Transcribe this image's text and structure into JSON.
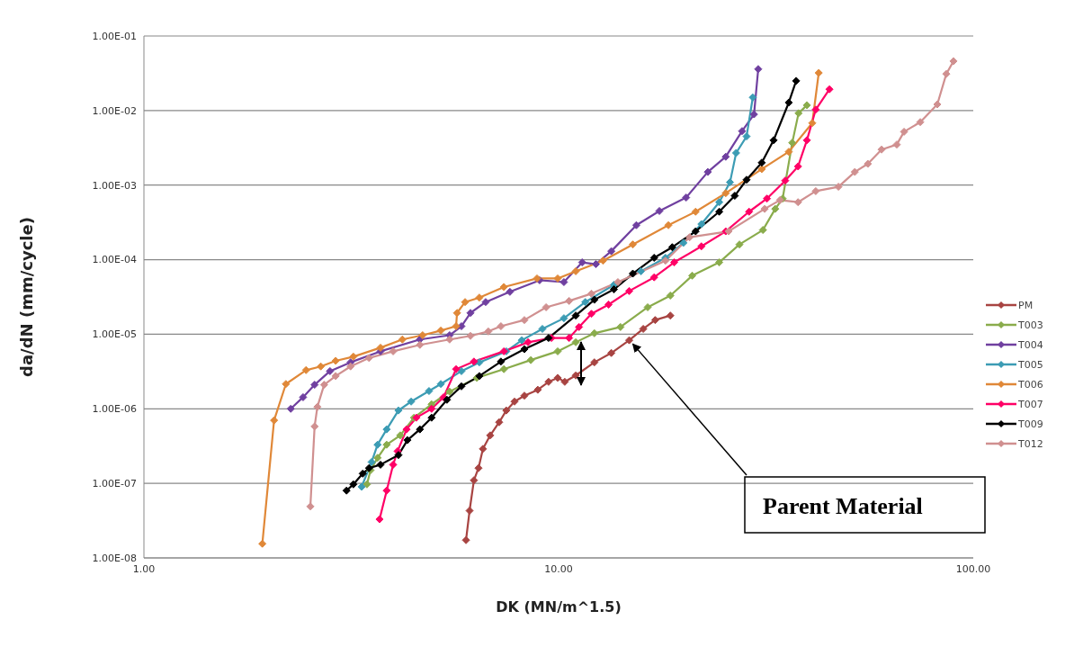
{
  "chart_data": {
    "type": "line",
    "xlabel": "DK (MN/m^1.5)",
    "ylabel": "da/dN (mm/cycle)",
    "log": "xy",
    "grid": "y",
    "legend": "right",
    "marker": "diamond",
    "line_style": "solid",
    "xlim": [
      1,
      100
    ],
    "xticks": [
      {
        "value": 1,
        "label": "1.00"
      },
      {
        "value": 10,
        "label": "10.00"
      },
      {
        "value": 100,
        "label": "100.00"
      }
    ],
    "ylim": [
      1e-08,
      0.1
    ],
    "yticks": [
      {
        "value": 1e-08,
        "label": "1.00E-08"
      },
      {
        "value": 1e-07,
        "label": "1.00E-07"
      },
      {
        "value": 1e-06,
        "label": "1.00E-06"
      },
      {
        "value": 1e-05,
        "label": "1.00E-05"
      },
      {
        "value": 0.0001,
        "label": "1.00E-04"
      },
      {
        "value": 0.001,
        "label": "1.00E-03"
      },
      {
        "value": 0.01,
        "label": "1.00E-02"
      },
      {
        "value": 0.1,
        "label": "1.00E-01"
      }
    ],
    "annotations": [
      {
        "text": "Parent Material",
        "x": 14.8,
        "y": 8.3e-06
      }
    ],
    "series": [
      {
        "name": "PM",
        "color": "#a84442",
        "x": [
          5.98,
          6.1,
          6.25,
          6.41,
          6.57,
          6.84,
          7.19,
          7.48,
          7.83,
          8.27,
          8.91,
          9.46,
          9.95,
          10.35,
          11.0,
          12.2,
          13.4,
          14.8,
          16.0,
          17.1,
          18.6
        ],
        "values": [
          1.73e-08,
          4.3e-08,
          1.1e-07,
          1.6e-07,
          2.9e-07,
          4.4e-07,
          6.6e-07,
          9.5e-07,
          1.25e-06,
          1.5e-06,
          1.8e-06,
          2.3e-06,
          2.6e-06,
          2.3e-06,
          2.8e-06,
          4.2e-06,
          5.6e-06,
          8.3e-06,
          1.18e-05,
          1.55e-05,
          1.78e-05
        ]
      },
      {
        "name": "T003",
        "color": "#8aac4c",
        "x": [
          3.45,
          3.52,
          3.66,
          3.85,
          4.15,
          4.48,
          4.94,
          5.46,
          6.35,
          7.38,
          8.57,
          9.95,
          11.0,
          12.2,
          14.1,
          16.4,
          18.6,
          21.0,
          24.4,
          27.3,
          31.1,
          33.3,
          34.7,
          36.6,
          37.9,
          39.7
        ],
        "values": [
          9.7e-08,
          1.5e-07,
          2.2e-07,
          3.3e-07,
          4.4e-07,
          7.6e-07,
          1.15e-06,
          1.7e-06,
          2.6e-06,
          3.4e-06,
          4.5e-06,
          5.9e-06,
          7.8e-06,
          1.03e-05,
          1.25e-05,
          2.3e-05,
          3.3e-05,
          6.1e-05,
          9.2e-05,
          0.00016,
          0.00025,
          0.00048,
          0.00066,
          0.0037,
          0.0092,
          0.0118
        ]
      },
      {
        "name": "T004",
        "color": "#7040a0",
        "x": [
          2.26,
          2.42,
          2.58,
          2.81,
          3.15,
          3.72,
          4.63,
          5.46,
          5.83,
          6.13,
          6.67,
          7.63,
          9.0,
          10.3,
          11.4,
          12.3,
          13.4,
          15.4,
          17.5,
          20.3,
          22.9,
          25.3,
          27.7,
          29.6,
          30.3
        ],
        "values": [
          1e-06,
          1.43e-06,
          2.1e-06,
          3.2e-06,
          4.2e-06,
          5.9e-06,
          8.5e-06,
          9.7e-06,
          1.28e-05,
          1.93e-05,
          2.7e-05,
          3.7e-05,
          5.3e-05,
          5e-05,
          9.2e-05,
          8.7e-05,
          0.00013,
          0.00029,
          0.00045,
          0.00068,
          0.0015,
          0.0024,
          0.0053,
          0.0089,
          0.036
        ]
      },
      {
        "name": "T005",
        "color": "#3c9cb4",
        "x": [
          3.35,
          3.54,
          3.66,
          3.85,
          4.11,
          4.41,
          4.87,
          5.2,
          5.83,
          6.44,
          7.48,
          8.15,
          9.14,
          10.3,
          11.6,
          13.6,
          15.8,
          18.1,
          20.0,
          22.1,
          24.4,
          25.9,
          26.8,
          28.4,
          29.4
        ],
        "values": [
          9e-08,
          1.93e-07,
          3.3e-07,
          5.3e-07,
          9.5e-07,
          1.25e-06,
          1.73e-06,
          2.15e-06,
          3.2e-06,
          4.2e-06,
          5.9e-06,
          8.3e-06,
          1.18e-05,
          1.64e-05,
          2.7e-05,
          4.6e-05,
          7e-05,
          0.000106,
          0.000168,
          0.0003,
          0.00059,
          0.00109,
          0.0027,
          0.0045,
          0.015
        ]
      },
      {
        "name": "T006",
        "color": "#e08838",
        "x": [
          1.93,
          2.06,
          2.2,
          2.46,
          2.67,
          2.9,
          3.2,
          3.72,
          4.2,
          4.7,
          5.2,
          5.66,
          5.69,
          5.95,
          6.44,
          7.38,
          8.87,
          9.95,
          11.0,
          12.8,
          15.1,
          18.4,
          21.4,
          25.3,
          30.9,
          35.9,
          40.9,
          42.4
        ],
        "values": [
          1.55e-08,
          7e-07,
          2.15e-06,
          3.3e-06,
          3.7e-06,
          4.4e-06,
          5e-06,
          6.6e-06,
          8.5e-06,
          9.7e-06,
          1.12e-05,
          1.28e-05,
          1.93e-05,
          2.7e-05,
          3.1e-05,
          4.3e-05,
          5.6e-05,
          5.6e-05,
          7e-05,
          9.7e-05,
          0.00016,
          0.00029,
          0.00044,
          0.00078,
          0.00164,
          0.0028,
          0.0068,
          0.032
        ]
      },
      {
        "name": "T007",
        "color": "#ff0066",
        "x": [
          3.7,
          3.85,
          3.99,
          4.09,
          4.3,
          4.54,
          4.94,
          5.28,
          5.66,
          6.25,
          7.38,
          8.44,
          9.61,
          10.6,
          11.2,
          12.0,
          13.2,
          14.8,
          17.0,
          19.0,
          22.1,
          25.3,
          28.8,
          31.8,
          35.2,
          37.8,
          39.7,
          41.7,
          45.0
        ],
        "values": [
          3.3e-08,
          8e-08,
          1.78e-07,
          2.7e-07,
          5.3e-07,
          7.6e-07,
          1e-06,
          1.43e-06,
          3.4e-06,
          4.3e-06,
          5.9e-06,
          7.8e-06,
          8.9e-06,
          8.9e-06,
          1.25e-05,
          1.88e-05,
          2.5e-05,
          3.8e-05,
          5.8e-05,
          9.2e-05,
          0.000151,
          0.00024,
          0.00044,
          0.00066,
          0.00115,
          0.00178,
          0.004,
          0.0103,
          0.0193
        ]
      },
      {
        "name": "T009",
        "color": "#000000",
        "x": [
          3.08,
          3.2,
          3.37,
          3.49,
          3.72,
          4.11,
          4.32,
          4.63,
          4.94,
          5.38,
          5.83,
          6.44,
          7.26,
          8.27,
          9.46,
          11.0,
          12.2,
          13.6,
          15.1,
          17.0,
          18.8,
          21.4,
          24.4,
          26.6,
          28.4,
          30.9,
          33.0,
          35.9,
          37.4
        ],
        "values": [
          8e-08,
          9.7e-08,
          1.35e-07,
          1.6e-07,
          1.78e-07,
          2.4e-07,
          3.8e-07,
          5.3e-07,
          7.6e-07,
          1.32e-06,
          2e-06,
          2.75e-06,
          4.3e-06,
          6.3e-06,
          8.9e-06,
          1.78e-05,
          2.9e-05,
          4e-05,
          6.5e-05,
          0.000106,
          0.000147,
          0.00024,
          0.00044,
          0.00072,
          0.00118,
          0.002,
          0.004,
          0.0128,
          0.025
        ]
      },
      {
        "name": "T012",
        "color": "#d09090",
        "x": [
          2.52,
          2.58,
          2.62,
          2.72,
          2.9,
          3.15,
          3.49,
          3.99,
          4.63,
          5.46,
          6.13,
          6.77,
          7.26,
          8.27,
          9.33,
          10.6,
          12.0,
          13.9,
          18.1,
          20.7,
          25.7,
          31.4,
          34.2,
          37.8,
          41.7,
          47.3,
          51.8,
          55.7,
          60.1,
          65.4,
          68.1,
          74.5,
          81.9,
          86.1,
          89.6
        ],
        "values": [
          4.9e-08,
          5.8e-07,
          1.06e-06,
          2.1e-06,
          2.75e-06,
          3.7e-06,
          4.8e-06,
          5.9e-06,
          7.2e-06,
          8.5e-06,
          9.5e-06,
          1.09e-05,
          1.28e-05,
          1.55e-05,
          2.3e-05,
          2.8e-05,
          3.5e-05,
          5e-05,
          9.7e-05,
          0.0002,
          0.00024,
          0.00048,
          0.00063,
          0.00059,
          0.00083,
          0.00095,
          0.0015,
          0.00193,
          0.003,
          0.0035,
          0.0052,
          0.007,
          0.0121,
          0.031,
          0.046
        ]
      }
    ]
  }
}
